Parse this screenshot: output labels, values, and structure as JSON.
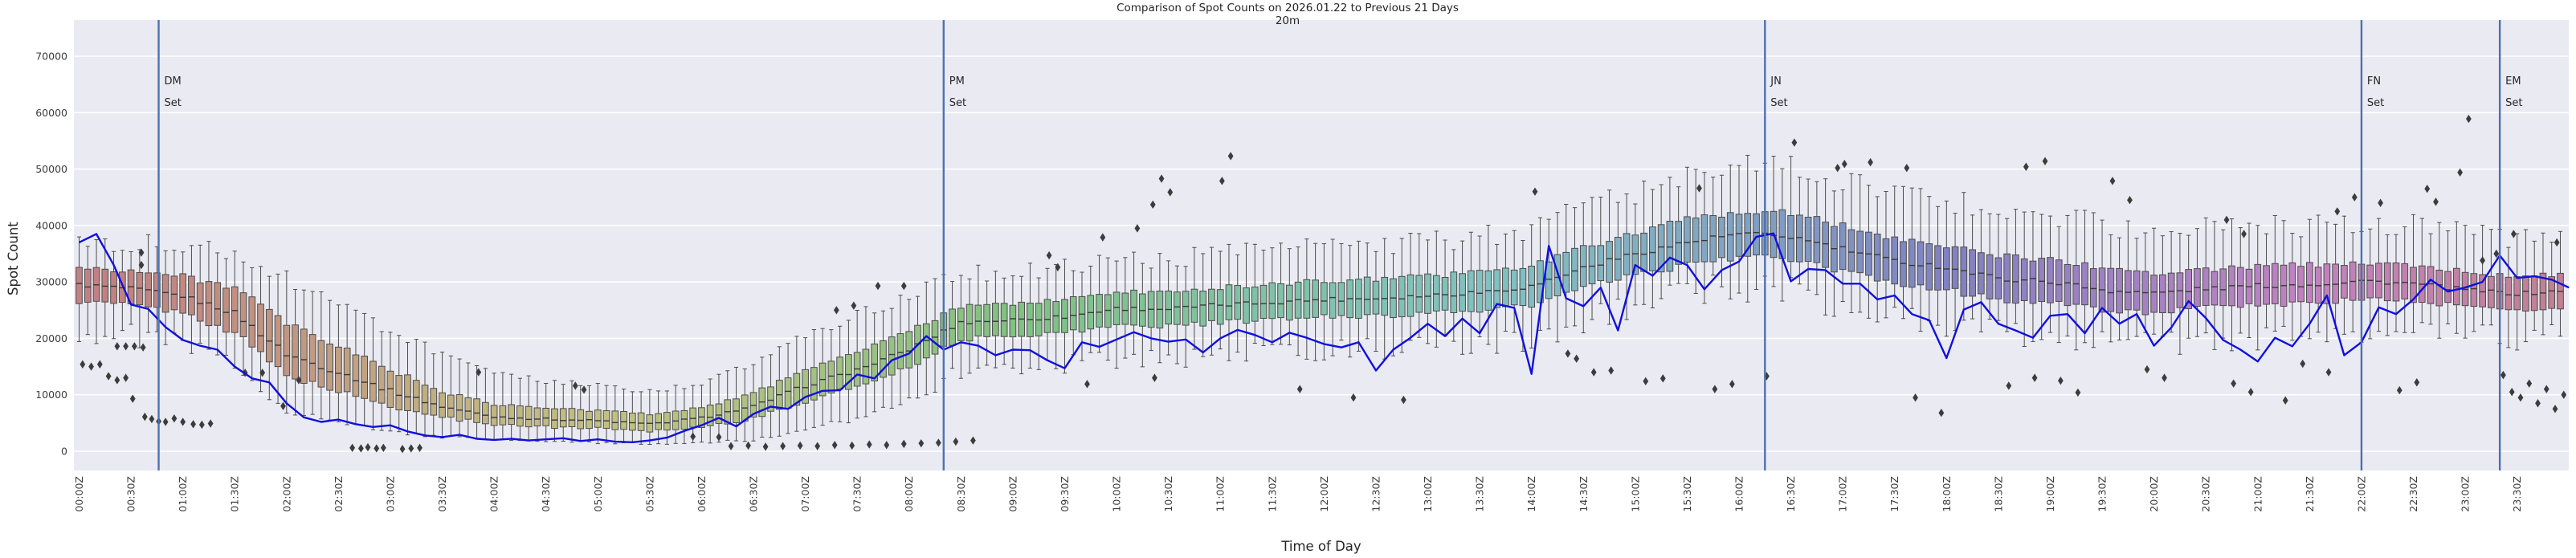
{
  "title": "Comparison of Spot Counts on 2026.01.22 to Previous 21 Days",
  "subtitle": "20m",
  "axes": {
    "x_label": "Time of Day",
    "y_label": "Spot Count",
    "x_tick_labels": [
      "00:00Z",
      "00:30Z",
      "01:00Z",
      "01:30Z",
      "02:00Z",
      "02:30Z",
      "03:00Z",
      "03:30Z",
      "04:00Z",
      "04:30Z",
      "05:00Z",
      "05:30Z",
      "06:00Z",
      "06:30Z",
      "07:00Z",
      "07:30Z",
      "08:00Z",
      "08:30Z",
      "09:00Z",
      "09:30Z",
      "10:00Z",
      "10:30Z",
      "11:00Z",
      "11:30Z",
      "12:00Z",
      "12:30Z",
      "13:00Z",
      "13:30Z",
      "14:00Z",
      "14:30Z",
      "15:00Z",
      "15:30Z",
      "16:00Z",
      "16:30Z",
      "17:00Z",
      "17:30Z",
      "18:00Z",
      "18:30Z",
      "19:00Z",
      "19:30Z",
      "20:00Z",
      "20:30Z",
      "21:00Z",
      "21:30Z",
      "22:00Z",
      "22:30Z",
      "23:00Z",
      "23:30Z"
    ],
    "y_tick_labels": [
      "0",
      "10000",
      "20000",
      "30000",
      "40000",
      "50000",
      "60000",
      "70000"
    ],
    "y_tick_values": [
      0,
      10000,
      20000,
      30000,
      40000,
      50000,
      60000,
      70000
    ],
    "y_lim": [
      0,
      72500
    ],
    "grid": "horizontal-white-on-lavender"
  },
  "events": [
    {
      "name": "DM Set",
      "line1": "DM",
      "line2": "Set",
      "minutes_utc": 46
    },
    {
      "name": "PM Set",
      "line1": "PM",
      "line2": "Set",
      "minutes_utc": 500
    },
    {
      "name": "JN Set",
      "line1": "JN",
      "line2": "Set",
      "minutes_utc": 975
    },
    {
      "name": "FN Set",
      "line1": "FN",
      "line2": "Set",
      "minutes_utc": 1320
    },
    {
      "name": "EM Set",
      "line1": "EM",
      "line2": "Set",
      "minutes_utc": 1400
    }
  ],
  "colors": {
    "figure_background": "#ffffff",
    "plot_background": "#eaeaf2",
    "grid_line": "#ffffff",
    "today_line": "#1010dd",
    "event_line": "#4c72b0",
    "box_edge": "#4c4c4c",
    "box_median": "#3a3a3a",
    "outlier": "#3c3c3c",
    "text": "#262626",
    "box_palette": {
      "saturation_pct": 34,
      "lightness_pct": 63,
      "hue_anchors_minute_hue": [
        [
          0,
          356
        ],
        [
          120,
          380
        ],
        [
          210,
          405
        ],
        [
          300,
          418
        ],
        [
          420,
          445
        ],
        [
          540,
          480
        ],
        [
          660,
          510
        ],
        [
          780,
          532
        ],
        [
          900,
          556
        ],
        [
          990,
          575
        ],
        [
          1080,
          600
        ],
        [
          1170,
          628
        ],
        [
          1260,
          652
        ],
        [
          1350,
          678
        ],
        [
          1440,
          706
        ]
      ]
    }
  },
  "chart_data": {
    "type": "boxplot+line",
    "title": "Comparison of Spot Counts on 2026.01.22 to Previous 21 Days",
    "subtitle_band": "20m",
    "xlabel": "Time of Day",
    "ylabel": "Spot Count",
    "x_unit": "minutes UTC (00:00Z to 24:00Z)",
    "ylim": [
      0,
      72500
    ],
    "legend": "none",
    "box_bin_minutes": 5,
    "box_anchor_step_minutes": 30,
    "box_stats_anchors": {
      "median": [
        29500,
        28800,
        27500,
        24500,
        17200,
        14000,
        10700,
        7900,
        6100,
        5700,
        5400,
        4800,
        5900,
        7900,
        11600,
        14400,
        18000,
        22800,
        23300,
        23800,
        25300,
        25200,
        25900,
        26400,
        26900,
        27100,
        27600,
        28200,
        29200,
        32500,
        35000,
        37000,
        38500,
        38000,
        35800,
        33700,
        32600,
        30600,
        30100,
        28600,
        28000,
        28800,
        29300,
        29500,
        30200,
        29700,
        28600,
        27900,
        28400
      ],
      "q1": [
        26500,
        26000,
        24500,
        21000,
        13500,
        10500,
        8000,
        6000,
        4800,
        4300,
        4100,
        3600,
        4300,
        5800,
        8800,
        11500,
        15000,
        19800,
        20500,
        21000,
        22300,
        22200,
        22800,
        23300,
        23800,
        24000,
        24400,
        25000,
        25800,
        29000,
        31200,
        33000,
        34500,
        34000,
        31800,
        29800,
        28600,
        26800,
        26400,
        25000,
        24600,
        25400,
        26000,
        26200,
        27000,
        26600,
        25600,
        25000,
        25400
      ],
      "q3": [
        32500,
        32000,
        31000,
        29000,
        22500,
        18500,
        14500,
        10500,
        8300,
        7600,
        7200,
        6600,
        7800,
        10200,
        14600,
        17600,
        21200,
        25600,
        26200,
        26800,
        28200,
        28200,
        29000,
        29600,
        30200,
        30500,
        31000,
        31800,
        32800,
        36000,
        38800,
        41000,
        42500,
        42200,
        40000,
        37800,
        36600,
        34600,
        34000,
        32400,
        31600,
        32200,
        32800,
        33000,
        33400,
        33000,
        31800,
        31000,
        31400
      ],
      "whisker_low": [
        21000,
        20500,
        19000,
        15000,
        7500,
        5000,
        3500,
        2500,
        2000,
        1800,
        1500,
        1300,
        1500,
        2000,
        3500,
        6000,
        9500,
        14000,
        15000,
        15500,
        16500,
        16500,
        17000,
        17500,
        18000,
        18000,
        18500,
        19000,
        19500,
        23000,
        25500,
        27500,
        29000,
        28500,
        26000,
        24000,
        22500,
        21000,
        20500,
        19500,
        19000,
        19500,
        20000,
        20500,
        21500,
        21000,
        20500,
        20000,
        20500
      ],
      "whisker_high": [
        37500,
        37000,
        36500,
        35500,
        30500,
        26000,
        21500,
        17000,
        13500,
        12500,
        11500,
        10500,
        12000,
        15500,
        20500,
        24000,
        27500,
        31500,
        32000,
        32500,
        34000,
        34000,
        35000,
        35500,
        36000,
        36500,
        37000,
        38000,
        39500,
        43000,
        46000,
        48500,
        50500,
        50000,
        48000,
        45500,
        44500,
        42500,
        42000,
        40000,
        39000,
        39500,
        40000,
        40000,
        40500,
        40000,
        38500,
        37500,
        38000
      ]
    },
    "outliers_minute_value": [
      [
        2,
        15400
      ],
      [
        7,
        15000
      ],
      [
        12,
        15400
      ],
      [
        17,
        13300
      ],
      [
        22,
        12600
      ],
      [
        27,
        13000
      ],
      [
        22,
        18600
      ],
      [
        27,
        18600
      ],
      [
        32,
        18600
      ],
      [
        37,
        18400
      ],
      [
        36,
        35200
      ],
      [
        36,
        33000
      ],
      [
        31,
        9300
      ],
      [
        38,
        6100
      ],
      [
        42,
        5700
      ],
      [
        46,
        5300
      ],
      [
        50,
        5200
      ],
      [
        55,
        5800
      ],
      [
        60,
        5200
      ],
      [
        66,
        4800
      ],
      [
        71,
        4700
      ],
      [
        76,
        4900
      ],
      [
        96,
        13900
      ],
      [
        106,
        13900
      ],
      [
        118,
        8000
      ],
      [
        127,
        12600
      ],
      [
        158,
        600
      ],
      [
        163,
        500
      ],
      [
        167,
        700
      ],
      [
        172,
        500
      ],
      [
        176,
        600
      ],
      [
        187,
        400
      ],
      [
        192,
        500
      ],
      [
        197,
        600
      ],
      [
        231,
        14000
      ],
      [
        287,
        11600
      ],
      [
        292,
        10900
      ],
      [
        355,
        2600
      ],
      [
        370,
        2500
      ],
      [
        377,
        900
      ],
      [
        387,
        1000
      ],
      [
        397,
        800
      ],
      [
        407,
        900
      ],
      [
        417,
        1000
      ],
      [
        427,
        900
      ],
      [
        437,
        1100
      ],
      [
        447,
        1000
      ],
      [
        457,
        1200
      ],
      [
        467,
        1100
      ],
      [
        477,
        1300
      ],
      [
        487,
        1400
      ],
      [
        497,
        1500
      ],
      [
        507,
        1700
      ],
      [
        517,
        1900
      ],
      [
        438,
        25000
      ],
      [
        448,
        25800
      ],
      [
        462,
        29300
      ],
      [
        477,
        29300
      ],
      [
        561,
        34700
      ],
      [
        566,
        32600
      ],
      [
        583,
        11900
      ],
      [
        592,
        37900
      ],
      [
        612,
        39500
      ],
      [
        621,
        43700
      ],
      [
        626,
        48300
      ],
      [
        631,
        45900
      ],
      [
        622,
        13000
      ],
      [
        661,
        47900
      ],
      [
        666,
        52300
      ],
      [
        706,
        11000
      ],
      [
        737,
        9500
      ],
      [
        766,
        9100
      ],
      [
        842,
        46000
      ],
      [
        861,
        17300
      ],
      [
        866,
        16400
      ],
      [
        876,
        14000
      ],
      [
        886,
        14300
      ],
      [
        906,
        12400
      ],
      [
        916,
        12900
      ],
      [
        937,
        46600
      ],
      [
        946,
        11000
      ],
      [
        956,
        11900
      ],
      [
        976,
        13300
      ],
      [
        992,
        54700
      ],
      [
        1017,
        50200
      ],
      [
        1021,
        50900
      ],
      [
        1036,
        51200
      ],
      [
        1057,
        50200
      ],
      [
        1062,
        9500
      ],
      [
        1077,
        6800
      ],
      [
        1116,
        11600
      ],
      [
        1126,
        50400
      ],
      [
        1131,
        13000
      ],
      [
        1137,
        51400
      ],
      [
        1146,
        12500
      ],
      [
        1156,
        10400
      ],
      [
        1176,
        47900
      ],
      [
        1186,
        44500
      ],
      [
        1196,
        14500
      ],
      [
        1206,
        13000
      ],
      [
        1242,
        41000
      ],
      [
        1246,
        12000
      ],
      [
        1252,
        38500
      ],
      [
        1256,
        10500
      ],
      [
        1276,
        9000
      ],
      [
        1286,
        15500
      ],
      [
        1301,
        14000
      ],
      [
        1306,
        42500
      ],
      [
        1316,
        45000
      ],
      [
        1331,
        44000
      ],
      [
        1342,
        10800
      ],
      [
        1352,
        12200
      ],
      [
        1358,
        46500
      ],
      [
        1363,
        44200
      ],
      [
        1377,
        49400
      ],
      [
        1382,
        58900
      ],
      [
        1390,
        33800
      ],
      [
        1398,
        35000
      ],
      [
        1402,
        13500
      ],
      [
        1407,
        10500
      ],
      [
        1408,
        38500
      ],
      [
        1412,
        9500
      ],
      [
        1417,
        12000
      ],
      [
        1422,
        8500
      ],
      [
        1427,
        11000
      ],
      [
        1432,
        7500
      ],
      [
        1433,
        37000
      ],
      [
        1437,
        10000
      ]
    ],
    "today_line": {
      "name": "2026.01.22",
      "step_minutes": 10,
      "values": [
        37000,
        38500,
        33000,
        26000,
        25200,
        22000,
        19700,
        18700,
        18000,
        15000,
        12900,
        12200,
        8500,
        6000,
        5200,
        5600,
        4800,
        4300,
        4600,
        3500,
        2800,
        2500,
        2900,
        2200,
        2000,
        2200,
        1900,
        2100,
        2300,
        1800,
        2100,
        1700,
        1600,
        1900,
        2400,
        3600,
        4600,
        5900,
        4400,
        6600,
        7900,
        7500,
        9600,
        10700,
        10800,
        13600,
        12900,
        16100,
        17300,
        20400,
        18000,
        19300,
        18700,
        17000,
        18000,
        17900,
        16100,
        14700,
        19300,
        18500,
        19800,
        21100,
        20000,
        19400,
        19800,
        17500,
        20000,
        21500,
        20600,
        19300,
        21000,
        20100,
        19000,
        18400,
        19300,
        14300,
        18000,
        20100,
        22600,
        20400,
        23500,
        20900,
        26100,
        25400,
        13700,
        36400,
        27100,
        25700,
        29000,
        21400,
        33000,
        31100,
        34300,
        33000,
        28700,
        32100,
        33600,
        38000,
        38600,
        30100,
        32300,
        32100,
        29700,
        29700,
        26900,
        27600,
        24300,
        23200,
        16500,
        25100,
        26400,
        22600,
        21400,
        20100,
        24000,
        24300,
        20900,
        25400,
        22600,
        24300,
        18700,
        21900,
        26600,
        23600,
        19700,
        18000,
        15900,
        20100,
        18600,
        22600,
        27600,
        17000,
        19300,
        25500,
        24300,
        26900,
        30400,
        28300,
        29000,
        30000,
        34700,
        30700,
        31000,
        30400,
        29000
      ]
    }
  }
}
